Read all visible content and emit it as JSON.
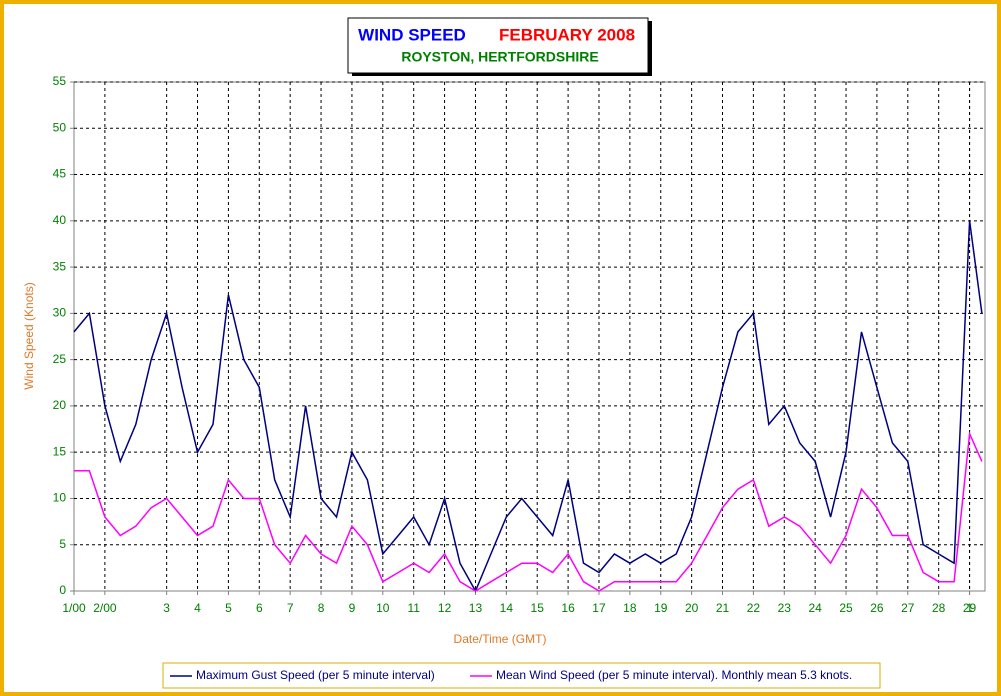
{
  "chart_data": {
    "type": "line",
    "title": "WIND SPEED",
    "period": "FEBRUARY 2008",
    "subtitle": "ROYSTON, HERTFORDSHIRE",
    "xlabel": "Date/Time (GMT)",
    "ylabel": "Wind Speed (Knots)",
    "x": [
      0,
      0.5,
      1,
      1.5,
      2,
      2.5,
      3,
      3.5,
      4,
      4.5,
      5,
      5.5,
      6,
      6.5,
      7,
      7.5,
      8,
      8.5,
      9,
      9.5,
      10,
      10.5,
      11,
      11.5,
      12,
      12.5,
      13,
      13.5,
      14,
      14.5,
      15,
      15.5,
      16,
      16.5,
      17,
      17.5,
      18,
      18.5,
      19,
      19.5,
      20,
      20.5,
      21,
      21.5,
      22,
      22.5,
      23,
      23.5,
      24,
      24.5,
      25,
      25.5,
      26,
      26.5,
      27,
      27.5,
      28,
      28.5,
      29,
      29.4
    ],
    "series": [
      {
        "name": "Maximum Gust Speed (per 5 minute interval)",
        "color": "#000080",
        "values": [
          28,
          30,
          20,
          14,
          18,
          25,
          30,
          22,
          15,
          18,
          32,
          25,
          22,
          12,
          8,
          20,
          10,
          8,
          15,
          12,
          4,
          6,
          8,
          5,
          10,
          3,
          0,
          4,
          8,
          10,
          8,
          6,
          12,
          3,
          2,
          4,
          3,
          4,
          3,
          4,
          8,
          15,
          22,
          28,
          30,
          18,
          20,
          16,
          14,
          8,
          15,
          28,
          22,
          16,
          14,
          5,
          4,
          3,
          40,
          30
        ]
      },
      {
        "name": "Mean Wind Speed (per 5 minute interval). Monthly mean 5.3 knots.",
        "color": "#ff00ff",
        "values": [
          13,
          13,
          8,
          6,
          7,
          9,
          10,
          8,
          6,
          7,
          12,
          10,
          10,
          5,
          3,
          6,
          4,
          3,
          7,
          5,
          1,
          2,
          3,
          2,
          4,
          1,
          0,
          1,
          2,
          3,
          3,
          2,
          4,
          1,
          0,
          1,
          1,
          1,
          1,
          1,
          3,
          6,
          9,
          11,
          12,
          7,
          8,
          7,
          5,
          3,
          6,
          11,
          9,
          6,
          6,
          2,
          1,
          1,
          17,
          14
        ]
      }
    ],
    "xlim": [
      0,
      29.5
    ],
    "xticks": [
      {
        "value": 0,
        "label": "1/00"
      },
      {
        "value": 1,
        "label": "2/00"
      },
      3,
      4,
      5,
      6,
      7,
      8,
      9,
      10,
      11,
      12,
      13,
      14,
      15,
      16,
      17,
      18,
      19,
      20,
      21,
      22,
      23,
      24,
      25,
      26,
      27,
      28,
      29,
      {
        "value": 29,
        "label": "1"
      }
    ],
    "ylim": [
      0,
      55
    ],
    "yticks": [
      0,
      5,
      10,
      15,
      20,
      25,
      30,
      35,
      40,
      45,
      50,
      55
    ],
    "grid": true
  }
}
